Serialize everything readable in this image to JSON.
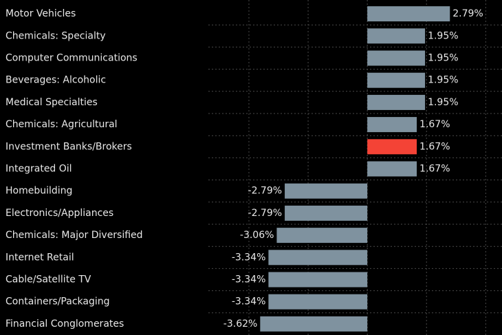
{
  "chart_data": {
    "type": "barh",
    "categories": [
      "Motor Vehicles",
      "Chemicals: Specialty",
      "Computer Communications",
      "Beverages: Alcoholic",
      "Medical Specialties",
      "Chemicals: Agricultural",
      "Investment Banks/Brokers",
      "Integrated Oil",
      "Homebuilding",
      "Electronics/Appliances",
      "Chemicals: Major Diversified",
      "Internet Retail",
      "Cable/Satellite TV",
      "Containers/Packaging",
      "Financial Conglomerates"
    ],
    "values": [
      2.79,
      1.95,
      1.95,
      1.95,
      1.95,
      1.67,
      1.67,
      1.67,
      -2.79,
      -2.79,
      -3.06,
      -3.34,
      -3.34,
      -3.34,
      -3.62
    ],
    "value_labels": [
      "2.79%",
      "1.95%",
      "1.95%",
      "1.95%",
      "1.95%",
      "1.67%",
      "1.67%",
      "1.67%",
      "-2.79%",
      "-2.79%",
      "-3.06%",
      "-3.34%",
      "-3.34%",
      "-3.34%",
      "-3.62%"
    ],
    "colors": [
      "#7f929f",
      "#7f929f",
      "#7f929f",
      "#7f929f",
      "#7f929f",
      "#7f929f",
      "#f44336",
      "#7f929f",
      "#7f929f",
      "#7f929f",
      "#7f929f",
      "#7f929f",
      "#7f929f",
      "#7f929f",
      "#7f929f"
    ],
    "xlim": [
      -5.37,
      4.55
    ],
    "xticks": [
      -4,
      -2,
      0,
      2,
      4
    ],
    "grid": true
  }
}
